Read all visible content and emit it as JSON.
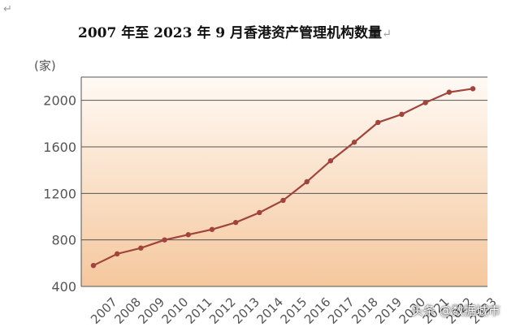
{
  "page": {
    "return_mark": "↵",
    "title": "2007 年至 2023 年 9 月香港资产管理机构数量",
    "title_mark": "↵",
    "watermark": "头条 @数据城市"
  },
  "colors": {
    "line": "#a0443c",
    "gradient_top": "#fffaf5",
    "gradient_bottom": "#f5c79d",
    "grid": "#555555",
    "axis_text": "#555555"
  },
  "chart_data": {
    "type": "line",
    "title": "2007 年至 2023 年 9 月香港资产管理机构数量",
    "ylabel": "(家)",
    "xlabel": "",
    "ylim": [
      400,
      2200
    ],
    "y_ticks": [
      400,
      800,
      1200,
      1600,
      2000
    ],
    "categories": [
      "2007",
      "2008",
      "2009",
      "2010",
      "2011",
      "2012",
      "2013",
      "2014",
      "2015",
      "2016",
      "2017",
      "2018",
      "2019",
      "2020",
      "2021",
      "2022",
      "2023"
    ],
    "x_tick_labels": [
      "2007",
      "2008",
      "2009",
      "2010",
      "2011",
      "2012",
      "2013",
      "2014",
      "2015",
      "2016",
      "2017",
      "2018",
      "2019",
      "2020",
      "2021",
      "2022",
      "2023"
    ],
    "series": [
      {
        "values": [
          580,
          680,
          730,
          800,
          845,
          890,
          950,
          1035,
          1140,
          1300,
          1480,
          1640,
          1810,
          1880,
          1980,
          2070,
          2100
        ]
      }
    ],
    "grid": true
  }
}
